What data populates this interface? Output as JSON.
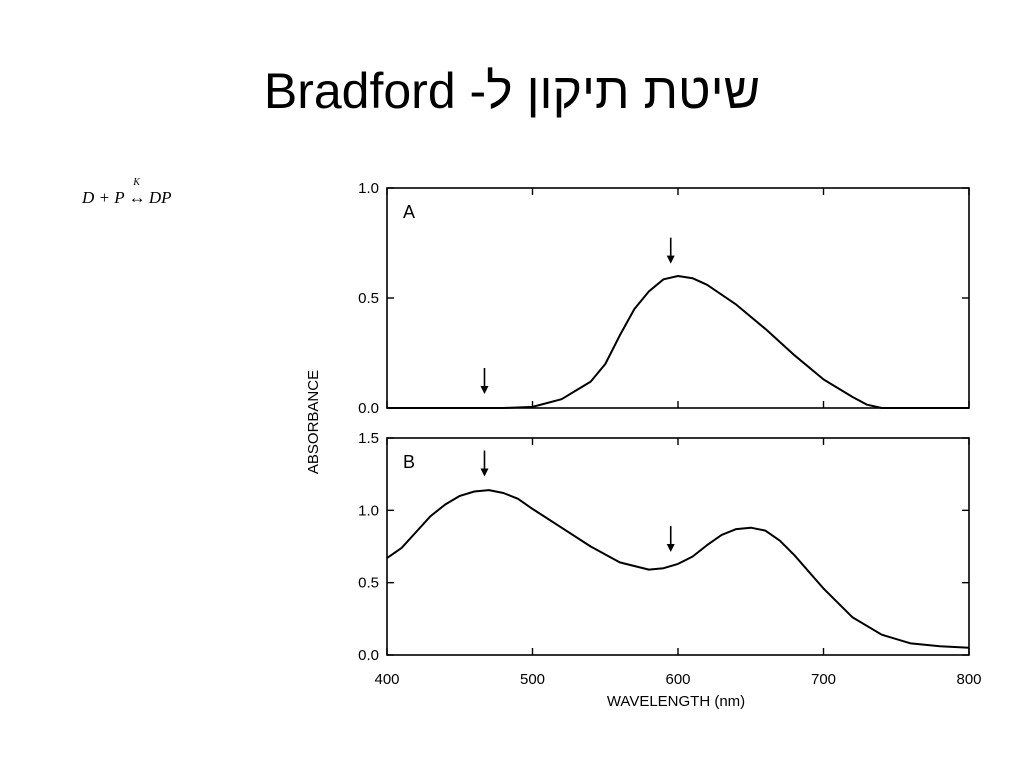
{
  "slide": {
    "title": "שיטת תיקון ל- Bradford"
  },
  "equation": {
    "lhs": "D + P",
    "rate_constant": "K",
    "arrow": "↔",
    "rhs": "DP"
  },
  "chart_data": [
    {
      "type": "line",
      "panel_label": "A",
      "xlabel": "WAVELENGTH (nm)",
      "ylabel": "ABSORBANCE",
      "xlim": [
        400,
        800
      ],
      "ylim": [
        0.0,
        1.0
      ],
      "x_ticks": [
        "400",
        "500",
        "600",
        "700",
        "800"
      ],
      "y_ticks": [
        "0.0",
        "0.5",
        "1.0"
      ],
      "series": [
        {
          "x": [
            400,
            450,
            480,
            500,
            520,
            540,
            550,
            560,
            570,
            580,
            590,
            600,
            610,
            620,
            640,
            660,
            680,
            700,
            720,
            730,
            740,
            800
          ],
          "y": [
            0.0,
            0.0,
            0.0,
            0.005,
            0.04,
            0.12,
            0.2,
            0.33,
            0.45,
            0.53,
            0.585,
            0.6,
            0.59,
            0.56,
            0.47,
            0.36,
            0.24,
            0.13,
            0.05,
            0.015,
            0.0,
            0.0
          ]
        }
      ],
      "annotations": [
        {
          "type": "arrow",
          "x": 467
        },
        {
          "type": "arrow",
          "x": 595
        }
      ]
    },
    {
      "type": "line",
      "panel_label": "B",
      "xlabel": "WAVELENGTH (nm)",
      "ylabel": "ABSORBANCE",
      "xlim": [
        400,
        800
      ],
      "ylim": [
        0.0,
        1.5
      ],
      "x_ticks": [
        "400",
        "500",
        "600",
        "700",
        "800"
      ],
      "y_ticks": [
        "0.0",
        "0.5",
        "1.0",
        "1.5"
      ],
      "series": [
        {
          "x": [
            400,
            410,
            420,
            430,
            440,
            450,
            460,
            470,
            480,
            490,
            500,
            520,
            540,
            560,
            580,
            590,
            600,
            610,
            620,
            630,
            640,
            650,
            660,
            670,
            680,
            700,
            720,
            740,
            760,
            780,
            800
          ],
          "y": [
            0.67,
            0.74,
            0.85,
            0.96,
            1.04,
            1.1,
            1.13,
            1.14,
            1.12,
            1.08,
            1.01,
            0.88,
            0.75,
            0.64,
            0.59,
            0.6,
            0.63,
            0.68,
            0.76,
            0.83,
            0.87,
            0.88,
            0.86,
            0.79,
            0.69,
            0.46,
            0.26,
            0.14,
            0.08,
            0.06,
            0.05
          ]
        }
      ],
      "annotations": [
        {
          "type": "arrow",
          "x": 467
        },
        {
          "type": "arrow",
          "x": 595
        }
      ]
    }
  ]
}
